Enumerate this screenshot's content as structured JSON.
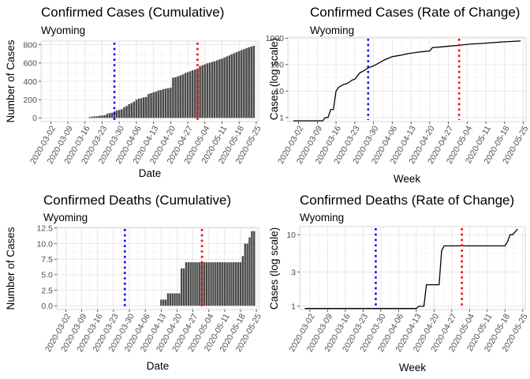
{
  "chart_data": [
    {
      "id": "cases_cum",
      "type": "bar",
      "title": "Confirmed Cases (Cumulative)",
      "subtitle": "Wyoming",
      "xlabel": "Date",
      "ylabel": "Number of Cases",
      "x_ticks": [
        "2020-03-02",
        "2020-03-09",
        "2020-03-16",
        "2020-03-23",
        "2020-03-30",
        "2020-04-06",
        "2020-04-13",
        "2020-04-20",
        "2020-04-27",
        "2020-05-04",
        "2020-05-11",
        "2020-05-18",
        "2020-05-25"
      ],
      "y_ticks": [
        "0",
        "200",
        "400",
        "600",
        "800"
      ],
      "y_tick_values": [
        0,
        200,
        400,
        600,
        800
      ],
      "ylim": [
        -40,
        840
      ],
      "x_start": "2020-02-27",
      "x_end": "2020-05-26",
      "grid": true,
      "vlines": [
        {
          "date": "2020-03-28",
          "color": "#0000ff",
          "style": "dotted"
        },
        {
          "date": "2020-05-01",
          "color": "#ff0000",
          "style": "dotted"
        }
      ],
      "series": [
        {
          "values": [
            [
              "2020-03-18",
              11
            ],
            [
              "2020-03-19",
              15
            ],
            [
              "2020-03-20",
              18
            ],
            [
              "2020-03-21",
              19
            ],
            [
              "2020-03-22",
              24
            ],
            [
              "2020-03-23",
              26
            ],
            [
              "2020-03-24",
              29
            ],
            [
              "2020-03-25",
              44
            ],
            [
              "2020-03-26",
              53
            ],
            [
              "2020-03-27",
              56
            ],
            [
              "2020-03-28",
              70
            ],
            [
              "2020-03-29",
              82
            ],
            [
              "2020-03-30",
              87
            ],
            [
              "2020-03-31",
              95
            ],
            [
              "2020-04-01",
              117
            ],
            [
              "2020-04-02",
              130
            ],
            [
              "2020-04-03",
              150
            ],
            [
              "2020-04-04",
              162
            ],
            [
              "2020-04-05",
              178
            ],
            [
              "2020-04-06",
              200
            ],
            [
              "2020-04-07",
              210
            ],
            [
              "2020-04-08",
              216
            ],
            [
              "2020-04-09",
              225
            ],
            [
              "2020-04-10",
              230
            ],
            [
              "2020-04-11",
              262
            ],
            [
              "2020-04-12",
              270
            ],
            [
              "2020-04-13",
              280
            ],
            [
              "2020-04-14",
              288
            ],
            [
              "2020-04-15",
              300
            ],
            [
              "2020-04-16",
              305
            ],
            [
              "2020-04-17",
              315
            ],
            [
              "2020-04-18",
              320
            ],
            [
              "2020-04-19",
              325
            ],
            [
              "2020-04-20",
              330
            ],
            [
              "2020-04-21",
              440
            ],
            [
              "2020-04-22",
              445
            ],
            [
              "2020-04-23",
              455
            ],
            [
              "2020-04-24",
              465
            ],
            [
              "2020-04-25",
              475
            ],
            [
              "2020-04-26",
              490
            ],
            [
              "2020-04-27",
              500
            ],
            [
              "2020-04-28",
              510
            ],
            [
              "2020-04-29",
              520
            ],
            [
              "2020-04-30",
              528
            ],
            [
              "2020-05-01",
              540
            ],
            [
              "2020-05-02",
              566
            ],
            [
              "2020-05-03",
              576
            ],
            [
              "2020-05-04",
              586
            ],
            [
              "2020-05-05",
              596
            ],
            [
              "2020-05-06",
              604
            ],
            [
              "2020-05-07",
              612
            ],
            [
              "2020-05-08",
              620
            ],
            [
              "2020-05-09",
              630
            ],
            [
              "2020-05-10",
              640
            ],
            [
              "2020-05-11",
              648
            ],
            [
              "2020-05-12",
              660
            ],
            [
              "2020-05-13",
              672
            ],
            [
              "2020-05-14",
              684
            ],
            [
              "2020-05-15",
              696
            ],
            [
              "2020-05-16",
              708
            ],
            [
              "2020-05-17",
              720
            ],
            [
              "2020-05-18",
              730
            ],
            [
              "2020-05-19",
              742
            ],
            [
              "2020-05-20",
              752
            ],
            [
              "2020-05-21",
              762
            ],
            [
              "2020-05-22",
              772
            ],
            [
              "2020-05-23",
              780
            ],
            [
              "2020-05-24",
              788
            ]
          ]
        }
      ]
    },
    {
      "id": "cases_rate",
      "type": "line",
      "title": "Confirmed Cases (Rate of Change)",
      "subtitle": "Wyoming",
      "xlabel": "Week",
      "ylabel": "Cases (log scale)",
      "yscale": "log",
      "x_ticks": [
        "2020-03-02",
        "2020-03-09",
        "2020-03-16",
        "2020-03-23",
        "2020-03-30",
        "2020-04-06",
        "2020-04-13",
        "2020-04-20",
        "2020-04-27",
        "2020-05-04",
        "2020-05-11",
        "2020-05-18",
        "2020-05-25"
      ],
      "y_ticks": [
        "1",
        "10",
        "100",
        "1000"
      ],
      "y_tick_values": [
        1,
        10,
        100,
        1000
      ],
      "ylim": [
        0.7,
        1100
      ],
      "x_start": "2020-02-27",
      "x_end": "2020-05-26",
      "grid": true,
      "vlines": [
        {
          "date": "2020-03-28",
          "color": "#0000ff",
          "style": "dotted"
        },
        {
          "date": "2020-05-01",
          "color": "#ff0000",
          "style": "dotted"
        }
      ],
      "series": [
        {
          "values": [
            [
              "2020-02-29",
              0.75
            ],
            [
              "2020-03-11",
              0.75
            ],
            [
              "2020-03-12",
              1
            ],
            [
              "2020-03-13",
              1
            ],
            [
              "2020-03-14",
              2
            ],
            [
              "2020-03-15",
              2
            ],
            [
              "2020-03-16",
              10
            ],
            [
              "2020-03-17",
              14
            ],
            [
              "2020-03-18",
              16
            ],
            [
              "2020-03-19",
              18
            ],
            [
              "2020-03-20",
              19
            ],
            [
              "2020-03-21",
              22
            ],
            [
              "2020-03-22",
              26
            ],
            [
              "2020-03-23",
              28
            ],
            [
              "2020-03-24",
              38
            ],
            [
              "2020-03-25",
              50
            ],
            [
              "2020-03-26",
              56
            ],
            [
              "2020-03-27",
              65
            ],
            [
              "2020-03-28",
              75
            ],
            [
              "2020-03-29",
              82
            ],
            [
              "2020-03-30",
              90
            ],
            [
              "2020-04-01",
              115
            ],
            [
              "2020-04-03",
              150
            ],
            [
              "2020-04-06",
              200
            ],
            [
              "2020-04-09",
              225
            ],
            [
              "2020-04-12",
              262
            ],
            [
              "2020-04-15",
              290
            ],
            [
              "2020-04-18",
              315
            ],
            [
              "2020-04-20",
              330
            ],
            [
              "2020-04-21",
              440
            ],
            [
              "2020-04-25",
              475
            ],
            [
              "2020-04-28",
              510
            ],
            [
              "2020-05-01",
              540
            ],
            [
              "2020-05-05",
              596
            ],
            [
              "2020-05-09",
              630
            ],
            [
              "2020-05-13",
              672
            ],
            [
              "2020-05-17",
              720
            ],
            [
              "2020-05-21",
              762
            ],
            [
              "2020-05-24",
              788
            ]
          ]
        }
      ]
    },
    {
      "id": "deaths_cum",
      "type": "bar",
      "title": "Confirmed Deaths (Cumulative)",
      "subtitle": "Wyoming",
      "xlabel": "Date",
      "ylabel": "Number of Cases",
      "x_ticks": [
        "2020-03-02",
        "2020-03-09",
        "2020-03-16",
        "2020-03-23",
        "2020-03-30",
        "2020-04-06",
        "2020-04-13",
        "2020-04-20",
        "2020-04-27",
        "2020-05-04",
        "2020-05-11",
        "2020-05-18",
        "2020-05-25"
      ],
      "y_ticks": [
        "0.0",
        "2.5",
        "5.0",
        "7.5",
        "10.0",
        "12.5"
      ],
      "y_tick_values": [
        0,
        2.5,
        5,
        7.5,
        10,
        12.5
      ],
      "ylim": [
        -0.6,
        12.6
      ],
      "x_start": "2020-02-27",
      "x_end": "2020-05-26",
      "grid": true,
      "vlines": [
        {
          "date": "2020-03-28",
          "color": "#0000ff",
          "style": "dotted"
        },
        {
          "date": "2020-05-01",
          "color": "#ff0000",
          "style": "dotted"
        }
      ],
      "series": [
        {
          "values": [
            [
              "2020-04-13",
              1
            ],
            [
              "2020-04-14",
              1
            ],
            [
              "2020-04-15",
              1
            ],
            [
              "2020-04-16",
              2
            ],
            [
              "2020-04-17",
              2
            ],
            [
              "2020-04-18",
              2
            ],
            [
              "2020-04-19",
              2
            ],
            [
              "2020-04-20",
              2
            ],
            [
              "2020-04-21",
              2
            ],
            [
              "2020-04-22",
              6
            ],
            [
              "2020-04-23",
              6
            ],
            [
              "2020-04-24",
              7
            ],
            [
              "2020-04-25",
              7
            ],
            [
              "2020-04-26",
              7
            ],
            [
              "2020-04-27",
              7
            ],
            [
              "2020-04-28",
              7
            ],
            [
              "2020-04-29",
              7
            ],
            [
              "2020-04-30",
              7
            ],
            [
              "2020-05-01",
              7
            ],
            [
              "2020-05-02",
              7
            ],
            [
              "2020-05-03",
              7
            ],
            [
              "2020-05-04",
              7
            ],
            [
              "2020-05-05",
              7
            ],
            [
              "2020-05-06",
              7
            ],
            [
              "2020-05-07",
              7
            ],
            [
              "2020-05-08",
              7
            ],
            [
              "2020-05-09",
              7
            ],
            [
              "2020-05-10",
              7
            ],
            [
              "2020-05-11",
              7
            ],
            [
              "2020-05-12",
              7
            ],
            [
              "2020-05-13",
              7
            ],
            [
              "2020-05-14",
              7
            ],
            [
              "2020-05-15",
              7
            ],
            [
              "2020-05-16",
              7
            ],
            [
              "2020-05-17",
              7
            ],
            [
              "2020-05-18",
              7
            ],
            [
              "2020-05-19",
              8
            ],
            [
              "2020-05-20",
              10
            ],
            [
              "2020-05-21",
              10
            ],
            [
              "2020-05-22",
              11
            ],
            [
              "2020-05-23",
              12
            ],
            [
              "2020-05-24",
              12
            ]
          ]
        }
      ]
    },
    {
      "id": "deaths_rate",
      "type": "line",
      "title": "Confirmed Deaths (Rate of Change)",
      "subtitle": "Wyoming",
      "xlabel": "Week",
      "ylabel": "Cases (log scale)",
      "yscale": "log",
      "x_ticks": [
        "2020-03-02",
        "2020-03-09",
        "2020-03-16",
        "2020-03-23",
        "2020-03-30",
        "2020-04-06",
        "2020-04-13",
        "2020-04-20",
        "2020-04-27",
        "2020-05-04",
        "2020-05-11",
        "2020-05-18",
        "2020-05-25"
      ],
      "y_ticks": [
        "1",
        "3",
        "10"
      ],
      "y_tick_values": [
        1,
        3,
        10
      ],
      "ylim": [
        0.9,
        13
      ],
      "x_start": "2020-02-27",
      "x_end": "2020-05-26",
      "grid": true,
      "vlines": [
        {
          "date": "2020-03-28",
          "color": "#0000ff",
          "style": "dotted"
        },
        {
          "date": "2020-05-01",
          "color": "#ff0000",
          "style": "dotted"
        }
      ],
      "series": [
        {
          "values": [
            [
              "2020-02-29",
              0.93
            ],
            [
              "2020-04-13",
              0.93
            ],
            [
              "2020-04-14",
              1
            ],
            [
              "2020-04-16",
              1
            ],
            [
              "2020-04-17",
              2
            ],
            [
              "2020-04-22",
              2
            ],
            [
              "2020-04-23",
              6
            ],
            [
              "2020-04-24",
              7
            ],
            [
              "2020-05-18",
              7
            ],
            [
              "2020-05-19",
              8
            ],
            [
              "2020-05-20",
              10
            ],
            [
              "2020-05-21",
              10
            ],
            [
              "2020-05-23",
              12
            ]
          ]
        }
      ]
    }
  ]
}
